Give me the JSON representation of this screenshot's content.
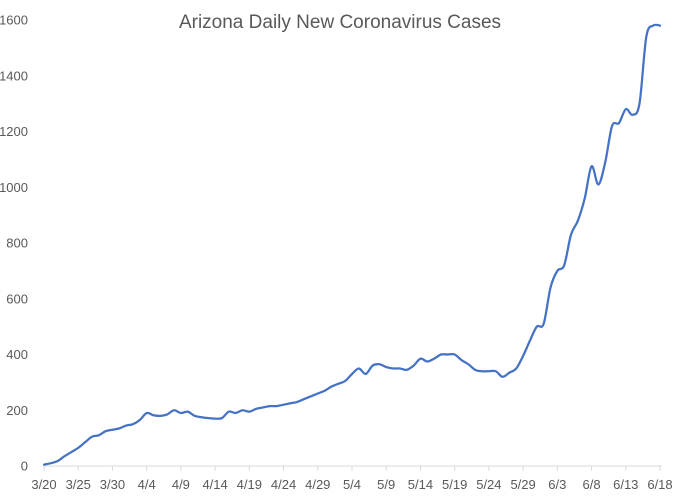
{
  "chart_data": {
    "type": "line",
    "title": "Arizona Daily New Coronavirus Cases",
    "xlabel": "",
    "ylabel": "",
    "ylim": [
      0,
      1600
    ],
    "yticks": [
      0,
      200,
      400,
      600,
      800,
      1000,
      1200,
      1400,
      1600
    ],
    "x_tick_labels": [
      "3/20",
      "3/25",
      "3/30",
      "4/4",
      "4/9",
      "4/14",
      "4/19",
      "4/24",
      "4/29",
      "5/4",
      "5/9",
      "5/14",
      "5/19",
      "5/24",
      "5/29",
      "6/3",
      "6/8",
      "6/13",
      "6/18"
    ],
    "x_range": [
      "3/20",
      "6/18"
    ],
    "grid": false,
    "legend": "none",
    "line_color": "#4472C4",
    "series": [
      {
        "x": [
          "3/20",
          "3/21",
          "3/22",
          "3/23",
          "3/24",
          "3/25",
          "3/26",
          "3/27",
          "3/28",
          "3/29",
          "3/30",
          "3/31",
          "4/1",
          "4/2",
          "4/3",
          "4/4",
          "4/5",
          "4/6",
          "4/7",
          "4/8",
          "4/9",
          "4/10",
          "4/11",
          "4/12",
          "4/13",
          "4/14",
          "4/15",
          "4/16",
          "4/17",
          "4/18",
          "4/19",
          "4/20",
          "4/21",
          "4/22",
          "4/23",
          "4/24",
          "4/25",
          "4/26",
          "4/27",
          "4/28",
          "4/29",
          "4/30",
          "5/1",
          "5/2",
          "5/3",
          "5/4",
          "5/5",
          "5/6",
          "5/7",
          "5/8",
          "5/9",
          "5/10",
          "5/11",
          "5/12",
          "5/13",
          "5/14",
          "5/15",
          "5/16",
          "5/17",
          "5/18",
          "5/19",
          "5/20",
          "5/21",
          "5/22",
          "5/23",
          "5/24",
          "5/25",
          "5/26",
          "5/27",
          "5/28",
          "5/29",
          "5/30",
          "5/31",
          "6/1",
          "6/2",
          "6/3",
          "6/4",
          "6/5",
          "6/6",
          "6/7",
          "6/8",
          "6/9",
          "6/10",
          "6/11",
          "6/12",
          "6/13",
          "6/14",
          "6/15",
          "6/16",
          "6/17",
          "6/18"
        ],
        "values": [
          5,
          10,
          18,
          35,
          50,
          65,
          85,
          105,
          110,
          125,
          130,
          135,
          145,
          150,
          165,
          190,
          182,
          180,
          185,
          200,
          190,
          195,
          180,
          175,
          172,
          170,
          172,
          195,
          190,
          200,
          195,
          205,
          210,
          215,
          215,
          220,
          225,
          230,
          240,
          250,
          260,
          270,
          285,
          295,
          305,
          330,
          350,
          330,
          360,
          365,
          355,
          350,
          350,
          345,
          360,
          385,
          375,
          385,
          400,
          400,
          400,
          380,
          365,
          345,
          340,
          340,
          340,
          320,
          335,
          350,
          395,
          450,
          500,
          510,
          640,
          700,
          720,
          830,
          880,
          960,
          1075,
          1010,
          1090,
          1220,
          1230,
          1280,
          1260,
          1300,
          1540,
          1580,
          1580
        ]
      }
    ]
  }
}
